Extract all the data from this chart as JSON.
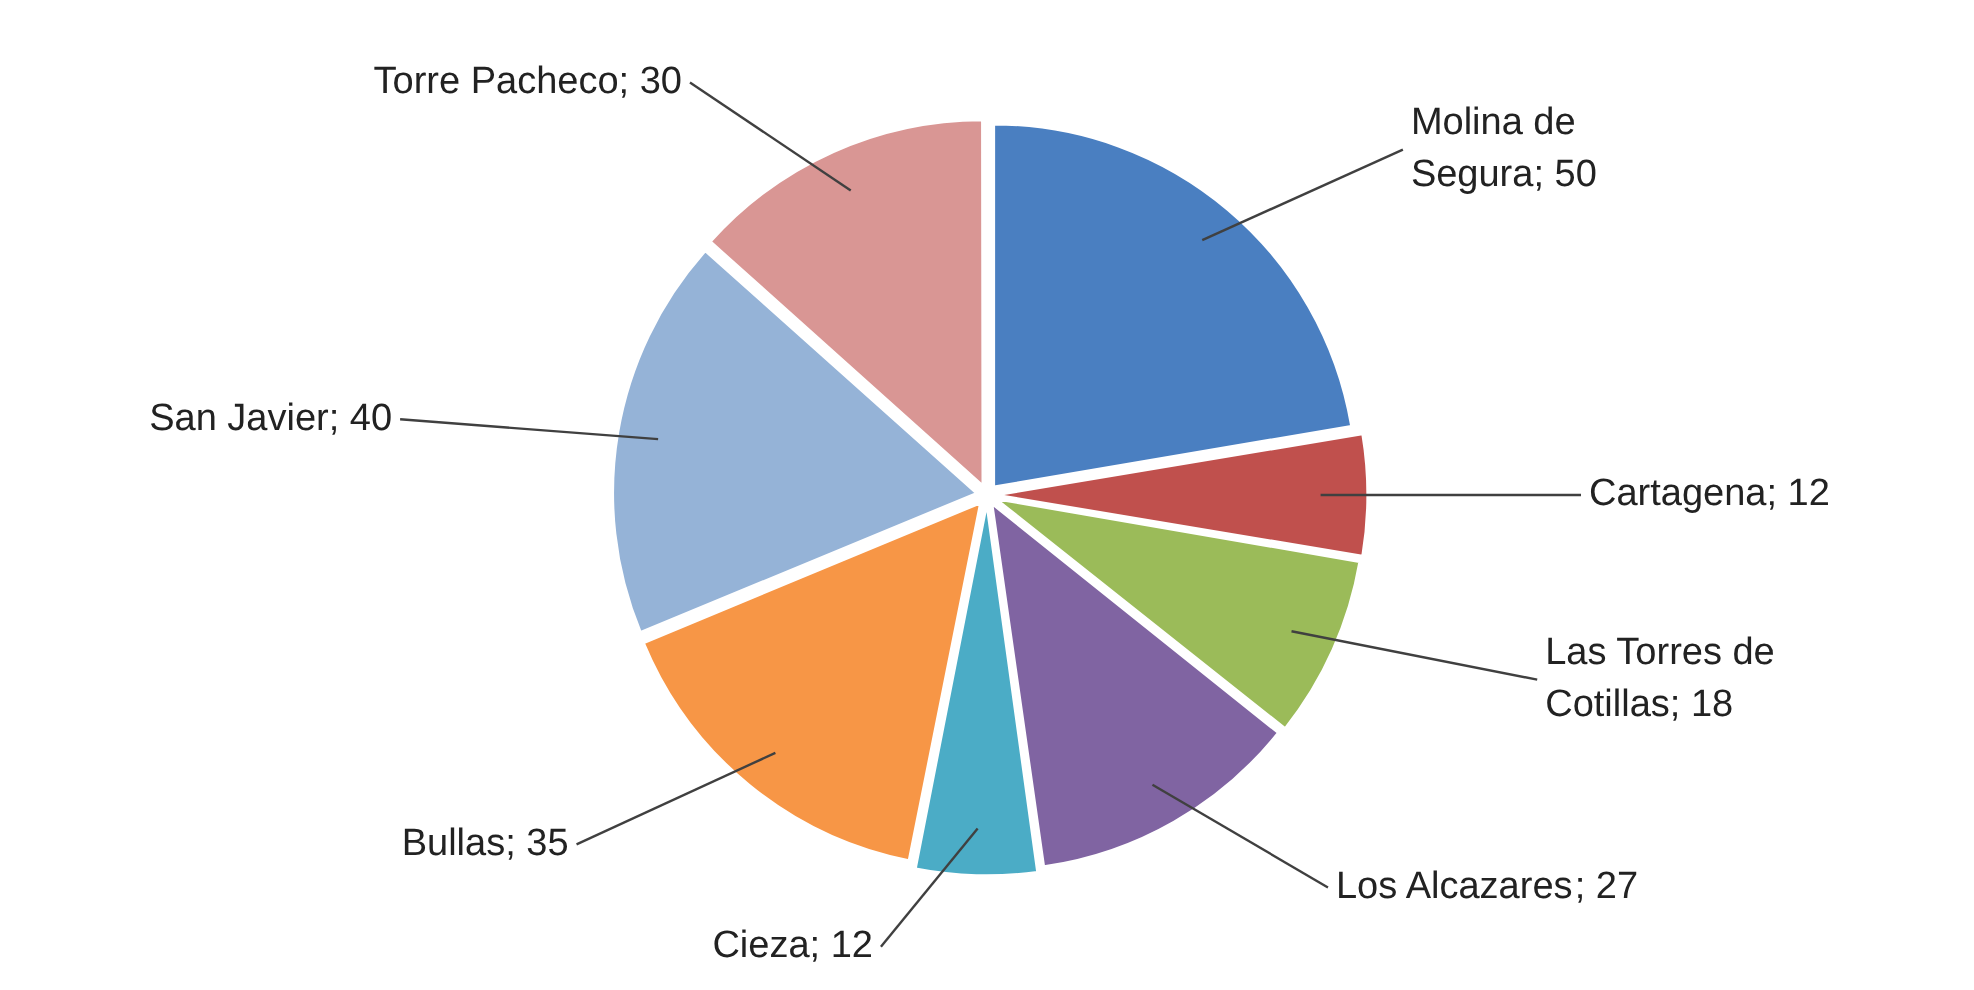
{
  "chart_data": {
    "type": "pie",
    "categories": [
      "Molina de Segura",
      "Cartagena",
      "Las Torres de Cotillas",
      "Los Alcazares",
      "Cieza",
      "Bullas",
      "San Javier",
      "Torre Pacheco"
    ],
    "values": [
      50,
      12,
      18,
      27,
      12,
      35,
      40,
      30
    ],
    "colors": [
      "#4a7fc1",
      "#c0504d",
      "#9bbb59",
      "#8064a2",
      "#4bacc6",
      "#f79646",
      "#95b3d7",
      "#d99694"
    ],
    "value_labels": [
      "; 50",
      "; 12",
      "; 18",
      "; 27",
      "; 12",
      "; 35",
      "; 40",
      "; 30"
    ],
    "legend": false
  }
}
